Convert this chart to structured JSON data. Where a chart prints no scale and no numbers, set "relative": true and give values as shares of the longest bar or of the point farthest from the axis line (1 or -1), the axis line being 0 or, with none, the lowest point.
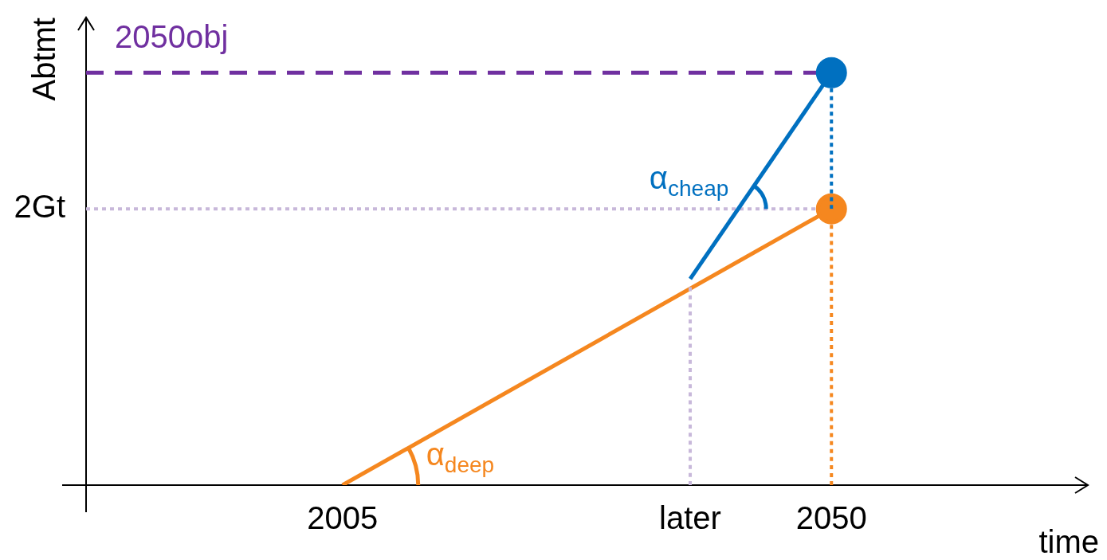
{
  "chart_data": {
    "type": "line",
    "relative": true,
    "xlabel": "time",
    "ylabel": "Abtmt",
    "xlim": [
      1981.4,
      2073.6
    ],
    "xticks": [
      2005,
      {
        "value": 2037,
        "label": "later"
      },
      2050
    ],
    "tick_labels": "x",
    "grid": false,
    "legend": false,
    "series": [
      {
        "type": "line",
        "color": "#f5871f",
        "x": [
          2005,
          2050
        ],
        "values": [
          0,
          0.67
        ],
        "line_style": "solid",
        "marker": "circle"
      },
      {
        "type": "line",
        "color": "#0070c0",
        "x": [
          2037,
          2050
        ],
        "values": [
          0.5,
          1
        ],
        "line_style": "solid",
        "marker": "circle"
      },
      {
        "type": "line",
        "color": "#f5871f",
        "x": [
          2050,
          2050
        ],
        "values": [
          0,
          0.67
        ],
        "line_style": "dotted",
        "marker": "none"
      },
      {
        "type": "line",
        "color": "#0070c0",
        "x": [
          2050,
          2050
        ],
        "values": [
          0.67,
          1
        ],
        "line_style": "dotted",
        "marker": "none"
      },
      {
        "type": "line",
        "color": "#c8b8da",
        "x": [
          2037,
          2037
        ],
        "values": [
          0,
          0.48
        ],
        "line_style": "dotted",
        "marker": "none"
      }
    ],
    "ref_lines": [
      {
        "axis": "y",
        "value": 0.67,
        "label": "2Gt",
        "color": "#c8b8da",
        "line_style": "dotted"
      },
      {
        "axis": "y",
        "value": 1,
        "label": "2050obj",
        "color": "#7030a0",
        "line_style": "dashed"
      }
    ],
    "annotations": [
      "α$_{deep}$",
      "α$_{cheap}$"
    ]
  }
}
